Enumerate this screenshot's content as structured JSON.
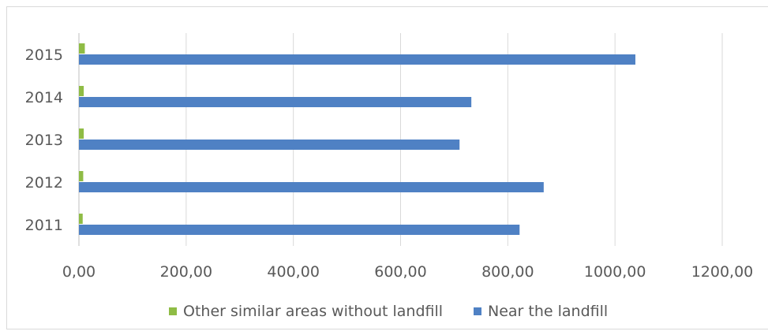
{
  "chart_data": {
    "type": "bar",
    "orientation": "horizontal",
    "categories": [
      "2011",
      "2012",
      "2013",
      "2014",
      "2015"
    ],
    "series": [
      {
        "name": "Other similar areas without landfill",
        "color": "#8fbc45",
        "values": [
          7,
          8,
          9,
          9,
          11
        ]
      },
      {
        "name": "Near the landfill",
        "color": "#4f81c4",
        "values": [
          822,
          867,
          710,
          732,
          1038
        ]
      }
    ],
    "xlim": [
      0,
      1200
    ],
    "x_ticks": [
      "0,00",
      "200,00",
      "400,00",
      "600,00",
      "800,00",
      "1000,00",
      "1200,00"
    ],
    "grid": true,
    "legend_position": "bottom",
    "title": "",
    "xlabel": "",
    "ylabel": ""
  }
}
